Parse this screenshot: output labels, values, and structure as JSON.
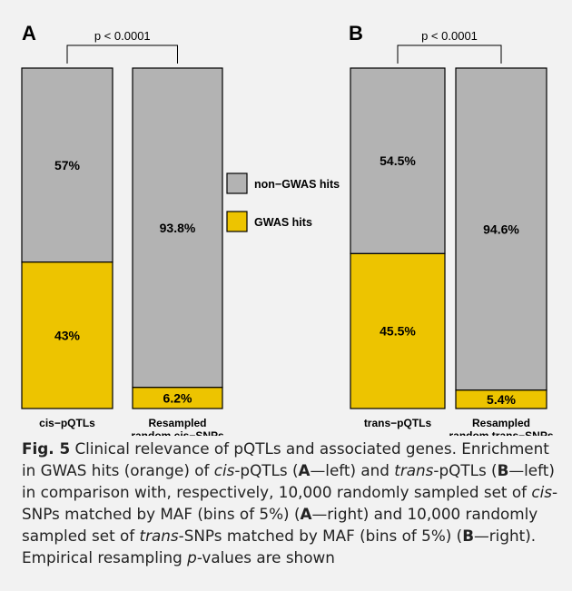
{
  "colors": {
    "non_gwas": "#b3b3b3",
    "gwas": "#edc400",
    "frame_bg": "#f2f2f2"
  },
  "chart_data": [
    {
      "panel": "A",
      "type": "bar",
      "stacked": true,
      "categories": [
        "cis−pQTLs",
        "Resampled random cis−SNPs"
      ],
      "series": [
        {
          "name": "non−GWAS hits",
          "values": [
            57.0,
            93.8
          ],
          "value_labels": [
            "57%",
            "93.8%"
          ]
        },
        {
          "name": "GWAS hits",
          "values": [
            43.0,
            6.2
          ],
          "value_labels": [
            "43%",
            "6.2%"
          ]
        }
      ],
      "ylim": [
        0,
        100
      ],
      "annotation": "p < 0.0001"
    },
    {
      "panel": "B",
      "type": "bar",
      "stacked": true,
      "categories": [
        "trans−pQTLs",
        "Resampled random trans−SNPs"
      ],
      "series": [
        {
          "name": "non−GWAS hits",
          "values": [
            54.5,
            94.6
          ],
          "value_labels": [
            "54.5%",
            "94.6%"
          ]
        },
        {
          "name": "GWAS hits",
          "values": [
            45.5,
            5.4
          ],
          "value_labels": [
            "45.5%",
            "5.4%"
          ]
        }
      ],
      "ylim": [
        0,
        100
      ],
      "annotation": "p < 0.0001"
    }
  ],
  "legend": [
    {
      "label": "non−GWAS hits",
      "color": "#b3b3b3"
    },
    {
      "label": "GWAS hits",
      "color": "#edc400"
    }
  ],
  "caption": {
    "label": "Fig. 5",
    "segments": [
      {
        "t": "  Clinical relevance of pQTLs and associated genes. Enrichment in GWAS hits (orange) of "
      },
      {
        "t": "cis",
        "i": true
      },
      {
        "t": "-pQTLs ("
      },
      {
        "t": "A",
        "b": true
      },
      {
        "t": "—left) and "
      },
      {
        "t": "trans",
        "i": true
      },
      {
        "t": "-pQTLs ("
      },
      {
        "t": "B",
        "b": true
      },
      {
        "t": "—left) in comparison with, respectively, 10,000 randomly sampled set of "
      },
      {
        "t": "cis",
        "i": true
      },
      {
        "t": "-SNPs matched by MAF (bins of 5%) ("
      },
      {
        "t": "A",
        "b": true
      },
      {
        "t": "—right) and 10,000 randomly sampled set of "
      },
      {
        "t": "trans",
        "i": true
      },
      {
        "t": "-SNPs matched by MAF (bins of 5%) ("
      },
      {
        "t": "B",
        "b": true
      },
      {
        "t": "—right). Empirical resampling "
      },
      {
        "t": "p",
        "i": true
      },
      {
        "t": "-values are shown"
      }
    ]
  }
}
